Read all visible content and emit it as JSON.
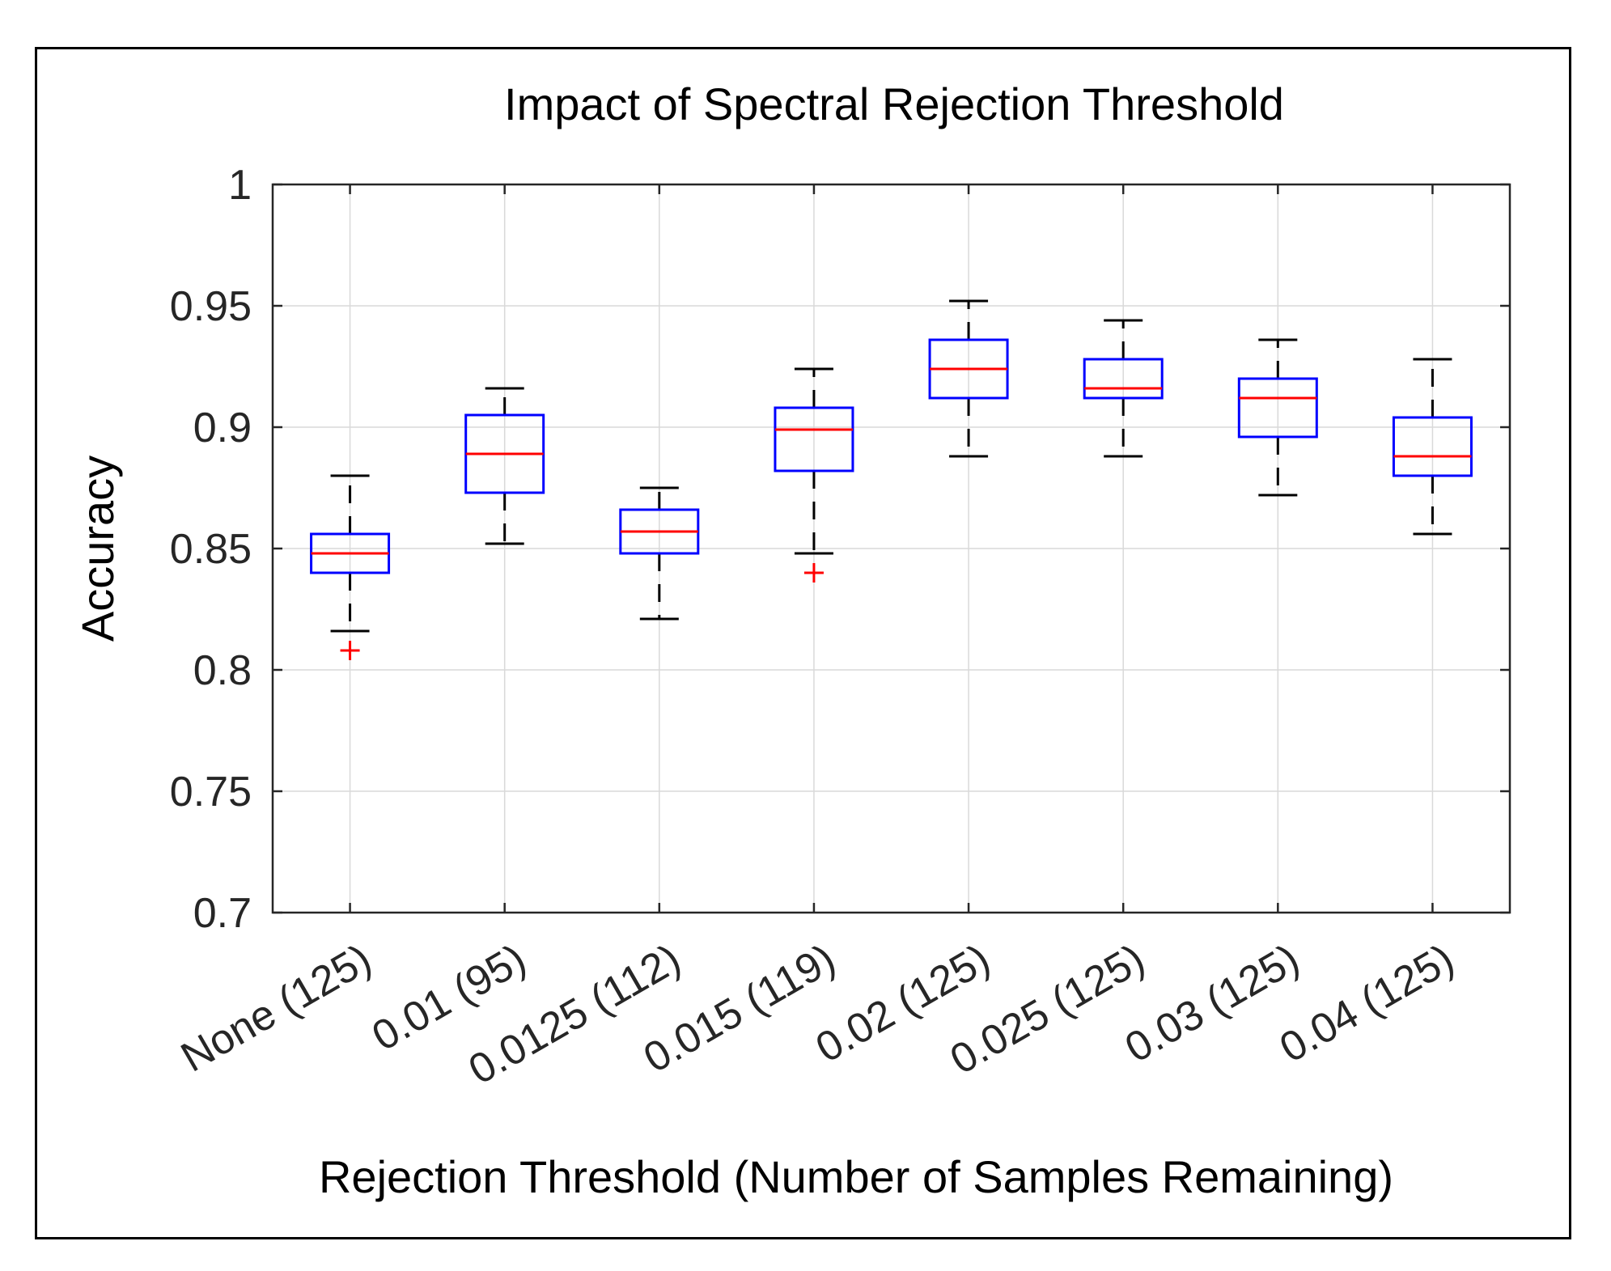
{
  "chart_data": {
    "type": "boxplot",
    "title": "Impact of Spectral Rejection Threshold",
    "xlabel": "Rejection Threshold (Number of Samples Remaining)",
    "ylabel": "Accuracy",
    "ylim": [
      0.7,
      1.0
    ],
    "yticks": [
      0.7,
      0.75,
      0.8,
      0.85,
      0.9,
      0.95,
      1
    ],
    "ytick_labels": [
      "0.7",
      "0.75",
      "0.8",
      "0.85",
      "0.9",
      "0.95",
      "1"
    ],
    "grid": true,
    "categories": [
      "None (125)",
      "0.01 (95)",
      "0.0125 (112)",
      "0.015 (119)",
      "0.02 (125)",
      "0.025 (125)",
      "0.03 (125)",
      "0.04 (125)"
    ],
    "boxes": [
      {
        "whisker_low": 0.816,
        "q1": 0.84,
        "median": 0.848,
        "q3": 0.856,
        "whisker_high": 0.88,
        "outliers": [
          0.808
        ]
      },
      {
        "whisker_low": 0.852,
        "q1": 0.873,
        "median": 0.889,
        "q3": 0.905,
        "whisker_high": 0.916,
        "outliers": []
      },
      {
        "whisker_low": 0.821,
        "q1": 0.848,
        "median": 0.857,
        "q3": 0.866,
        "whisker_high": 0.875,
        "outliers": []
      },
      {
        "whisker_low": 0.848,
        "q1": 0.882,
        "median": 0.899,
        "q3": 0.908,
        "whisker_high": 0.924,
        "outliers": [
          0.84
        ]
      },
      {
        "whisker_low": 0.888,
        "q1": 0.912,
        "median": 0.924,
        "q3": 0.936,
        "whisker_high": 0.952,
        "outliers": []
      },
      {
        "whisker_low": 0.888,
        "q1": 0.912,
        "median": 0.916,
        "q3": 0.928,
        "whisker_high": 0.944,
        "outliers": []
      },
      {
        "whisker_low": 0.872,
        "q1": 0.896,
        "median": 0.912,
        "q3": 0.92,
        "whisker_high": 0.936,
        "outliers": []
      },
      {
        "whisker_low": 0.856,
        "q1": 0.88,
        "median": 0.888,
        "q3": 0.904,
        "whisker_high": 0.928,
        "outliers": []
      }
    ],
    "colors": {
      "box": "#0000ff",
      "median": "#ff0000",
      "whisker": "#000000",
      "outlier": "#ff0000",
      "grid": "#d9d9d9"
    }
  }
}
